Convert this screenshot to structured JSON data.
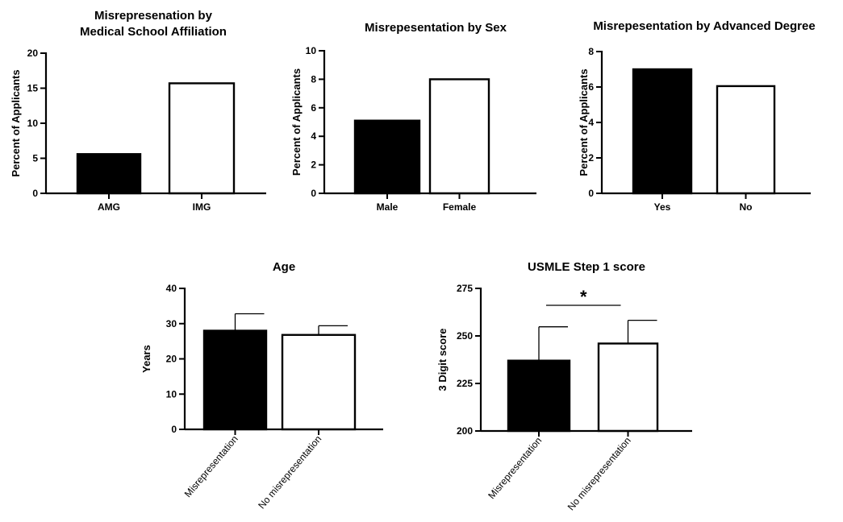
{
  "chart_data": [
    {
      "type": "bar",
      "title_lines": [
        "Misrepresenation by",
        "Medical School Affiliation"
      ],
      "ylabel": "Percent of Applicants",
      "ylim": [
        0,
        20
      ],
      "yticks": [
        0,
        5,
        10,
        15,
        20
      ],
      "categories": [
        "AMG",
        "IMG"
      ],
      "values": [
        5.6,
        15.7
      ],
      "fills": [
        "#000000",
        "#ffffff"
      ]
    },
    {
      "type": "bar",
      "title_lines": [
        "Misrepesentation by Sex"
      ],
      "ylabel": "Percent of Applicants",
      "ylim": [
        0,
        10
      ],
      "yticks": [
        0,
        2,
        4,
        6,
        8,
        10
      ],
      "categories": [
        "Male",
        "Female"
      ],
      "values": [
        5.1,
        8.0
      ],
      "fills": [
        "#000000",
        "#ffffff"
      ]
    },
    {
      "type": "bar",
      "title_lines": [
        "Misrepesentation by Advanced Degree"
      ],
      "ylabel": "Percent of Applicants",
      "ylim": [
        0,
        8
      ],
      "yticks": [
        0,
        2,
        4,
        6,
        8
      ],
      "categories": [
        "Yes",
        "No"
      ],
      "values": [
        7.0,
        6.05
      ],
      "fills": [
        "#000000",
        "#ffffff"
      ]
    },
    {
      "type": "bar",
      "title_lines": [
        "Age"
      ],
      "ylabel": "Years",
      "ylim": [
        0,
        40
      ],
      "yticks": [
        0,
        10,
        20,
        30,
        40
      ],
      "categories": [
        "Misrepresentation",
        "No misrepresentation"
      ],
      "values": [
        28.0,
        26.8
      ],
      "errors": [
        4.8,
        2.6
      ],
      "fills": [
        "#000000",
        "#ffffff"
      ]
    },
    {
      "type": "bar",
      "title_lines": [
        "USMLE Step 1 score"
      ],
      "ylabel": "3 Digit score",
      "ylim": [
        200,
        275
      ],
      "yticks": [
        200,
        225,
        250,
        275
      ],
      "categories": [
        "Misrepresentation",
        "No misrepresentation"
      ],
      "values": [
        237.0,
        246.0
      ],
      "errors": [
        17.8,
        12.2
      ],
      "fills": [
        "#000000",
        "#ffffff"
      ],
      "significance": "*"
    }
  ]
}
